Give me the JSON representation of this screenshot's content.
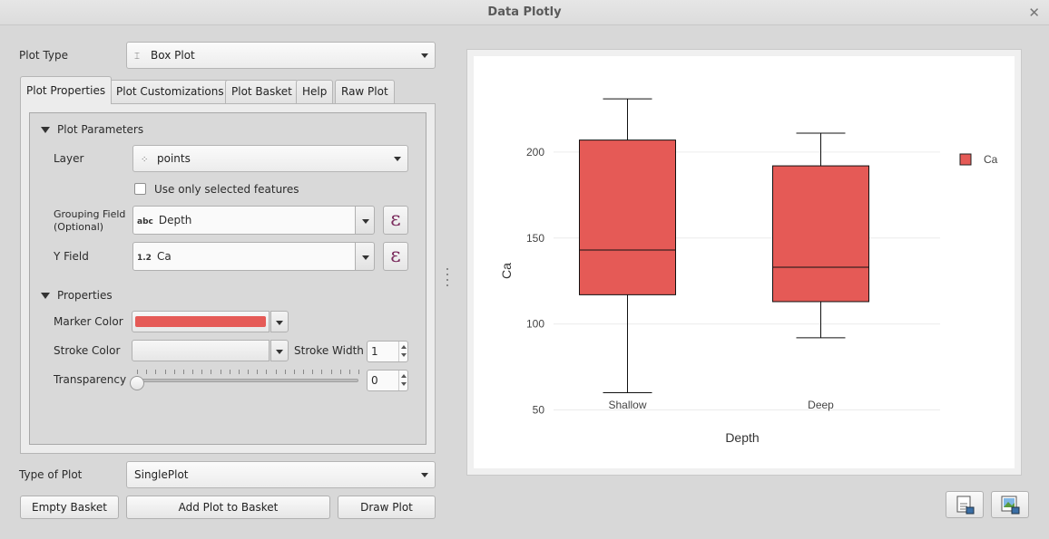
{
  "window": {
    "title": "Data Plotly"
  },
  "plot_type": {
    "label": "Plot Type",
    "value": "Box Plot"
  },
  "tabs": [
    {
      "label": "Plot Properties",
      "active": true
    },
    {
      "label": "Plot Customizations",
      "active": false
    },
    {
      "label": "Plot Basket",
      "active": false
    },
    {
      "label": "Help",
      "active": false
    },
    {
      "label": "Raw Plot",
      "active": false
    }
  ],
  "plot_parameters": {
    "header": "Plot Parameters",
    "layer_label": "Layer",
    "layer_value": "points",
    "use_selected_label": "Use only selected features",
    "use_selected_checked": false,
    "grouping_label_1": "Grouping Field",
    "grouping_label_2": "(Optional)",
    "grouping_type": "abc",
    "grouping_value": "Depth",
    "y_label": "Y Field",
    "y_type": "1.2",
    "y_value": "Ca",
    "expression_glyph": "ε"
  },
  "properties": {
    "header": "Properties",
    "marker_color_label": "Marker Color",
    "marker_color": "#e55a56",
    "stroke_color_label": "Stroke Color",
    "stroke_width_label": "Stroke Width",
    "stroke_width": "1",
    "transparency_label": "Transparency",
    "transparency": "0"
  },
  "type_of_plot": {
    "label": "Type of Plot",
    "value": "SinglePlot"
  },
  "buttons": {
    "empty_basket": "Empty Basket",
    "add_to_basket": "Add Plot to Basket",
    "draw_plot": "Draw Plot"
  },
  "chart_data": {
    "type": "box",
    "xlabel": "Depth",
    "ylabel": "Ca",
    "categories": [
      "Shallow",
      "Deep"
    ],
    "y_ticks": [
      50,
      100,
      150,
      200
    ],
    "ylim": [
      45,
      240
    ],
    "series": [
      {
        "name": "Ca",
        "color": "#e55a56",
        "boxes": [
          {
            "category": "Shallow",
            "min": 60,
            "q1": 117,
            "median": 143,
            "q3": 207,
            "max": 231
          },
          {
            "category": "Deep",
            "min": 92,
            "q1": 113,
            "median": 133,
            "q3": 192,
            "max": 211
          }
        ]
      }
    ],
    "legend": {
      "position": "top-right",
      "entries": [
        "Ca"
      ]
    },
    "grid": true
  }
}
